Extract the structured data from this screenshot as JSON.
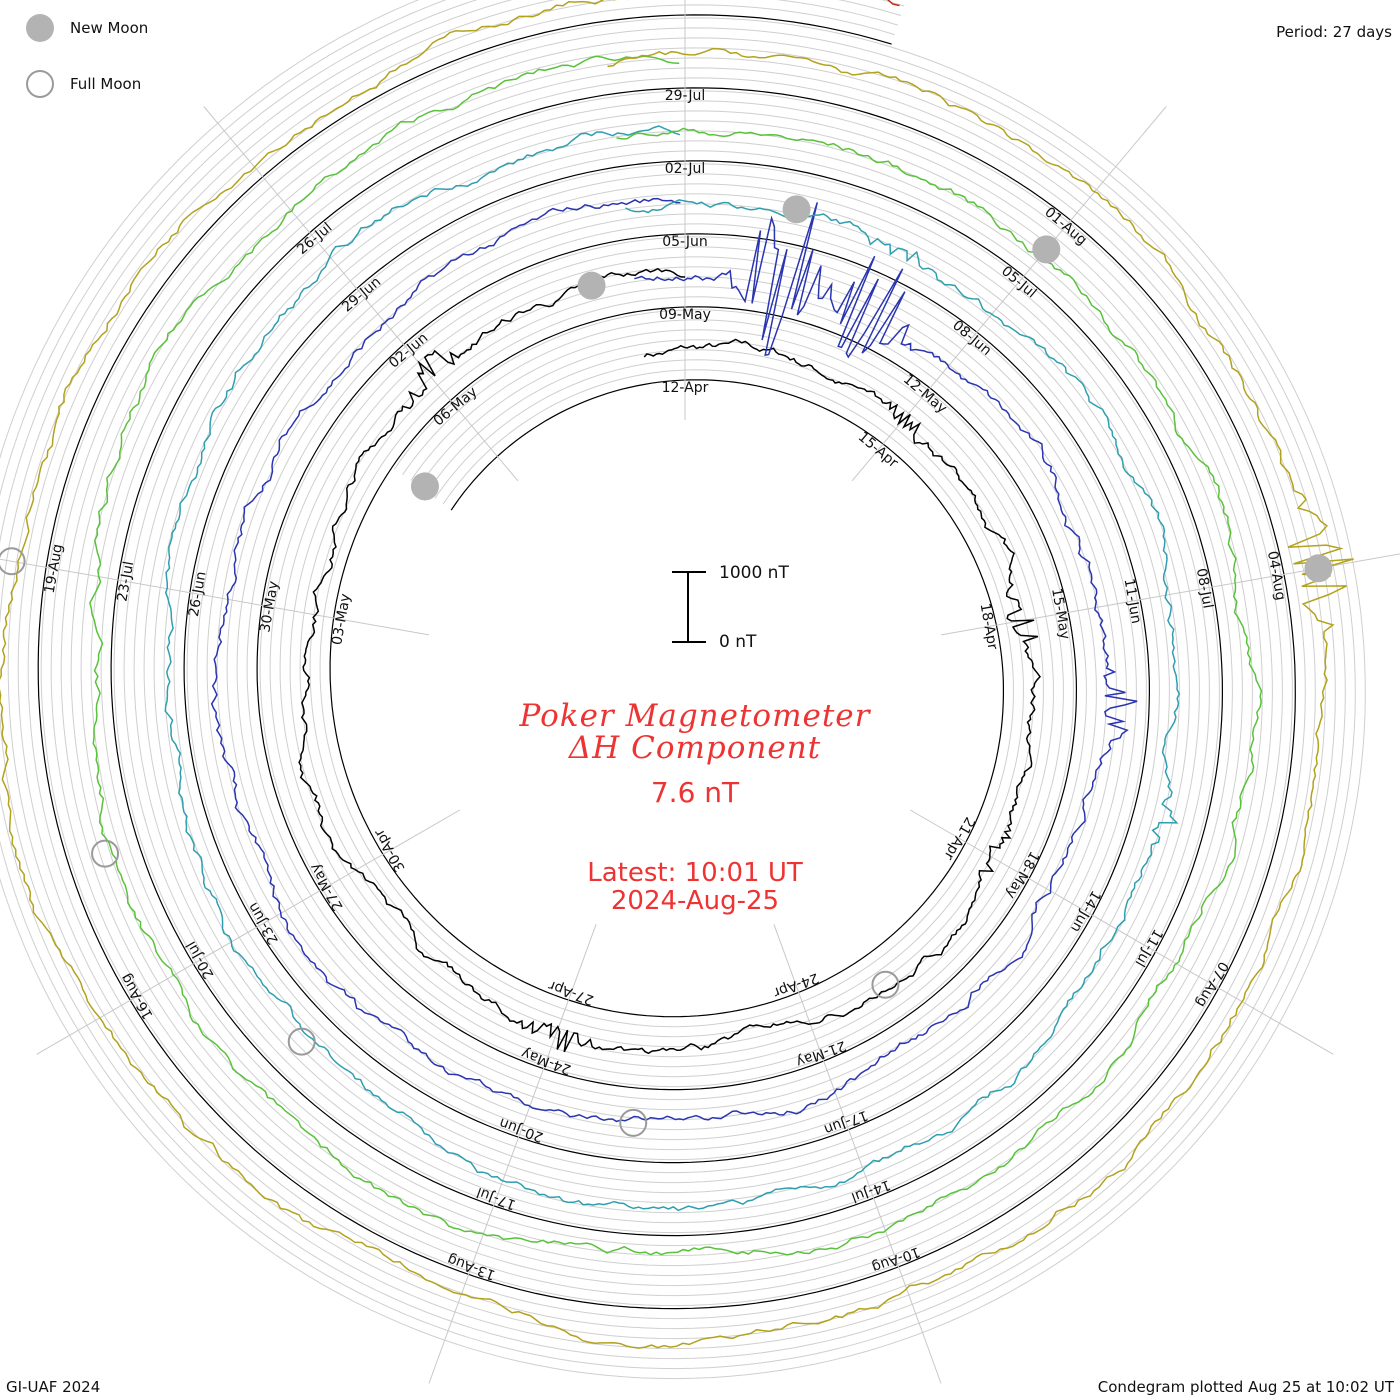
{
  "legend": {
    "new_moon": "New Moon",
    "full_moon": "Full Moon"
  },
  "period": "Period: 27 days",
  "footer_left": "GI-UAF 2024",
  "footer_right": "Condegram plotted Aug 25 at 10:02 UT",
  "scale": {
    "top_label": "1000 nT",
    "bottom_label": "0 nT"
  },
  "center": {
    "title_line1": "Poker Magnetometer",
    "title_line2": "ΔH Component",
    "value": "7.6 nT",
    "latest_line1": "Latest: 10:01 UT",
    "latest_line2": "2024-Aug-25"
  },
  "chart_data": {
    "type": "line",
    "title": "Poker Magnetometer ΔH Component",
    "subtitle": "7.6 nT",
    "period_days": 27,
    "series": [
      {
        "color": "#000000",
        "tick_labels": [
          "12-Apr",
          "15-Apr",
          "18-Apr",
          "21-Apr",
          "24-Apr",
          "27-Apr",
          "30-Apr",
          "03-May",
          "06-May"
        ],
        "disturbances": [
          {
            "date": "06-May",
            "nT": 350
          },
          {
            "date": "15-Apr",
            "nT": 180
          },
          {
            "date": "18-Apr",
            "nT": 320
          },
          {
            "date": "21-Apr",
            "nT": 160
          },
          {
            "date": "27-Apr",
            "nT": 260
          }
        ]
      },
      {
        "color": "#2a35b0",
        "tick_labels": [
          "09-May",
          "12-May",
          "15-May",
          "18-May",
          "21-May",
          "24-May",
          "27-May",
          "30-May",
          "02-Jun"
        ],
        "disturbances": [
          {
            "date": "10-May",
            "nT": 1700
          },
          {
            "date": "11-May",
            "nT": 1200
          },
          {
            "date": "16-May",
            "nT": 300
          },
          {
            "date": "03-May",
            "nT": 500
          }
        ]
      },
      {
        "color": "#2f9fb0",
        "tick_labels": [
          "05-Jun",
          "08-Jun",
          "11-Jun",
          "14-Jun",
          "17-Jun",
          "20-Jun",
          "23-Jun",
          "26-Jun",
          "29-Jun"
        ],
        "disturbances": [
          {
            "date": "07-Jun",
            "nT": 120
          },
          {
            "date": "13-Jun",
            "nT": 150
          }
        ]
      },
      {
        "color": "#59c23b",
        "tick_labels": [
          "02-Jul",
          "05-Jul",
          "08-Jul",
          "11-Jul",
          "14-Jul",
          "17-Jul",
          "20-Jul",
          "23-Jul",
          "26-Jul"
        ],
        "disturbances": [
          {
            "date": "20-Jun",
            "nT": 140
          }
        ]
      },
      {
        "color": "#b3a21c",
        "tick_labels": [
          "29-Jul",
          "01-Aug",
          "04-Aug",
          "07-Aug",
          "10-Aug",
          "13-Aug",
          "16-Aug",
          "19-Aug"
        ],
        "disturbances": [
          {
            "date": "04-Aug",
            "nT": 650
          },
          {
            "date": "28-Jul",
            "nT": 120
          }
        ]
      },
      {
        "color": "#c22a18",
        "tick_labels": [],
        "disturbances": [
          {
            "date": "19-Aug",
            "nT": 220
          },
          {
            "date": "23-Aug",
            "nT": 180
          }
        ]
      }
    ],
    "scale_bar": {
      "min_nT": 0,
      "max_nT": 1000
    },
    "moon_phases": {
      "new_moon": [
        "08-Apr",
        "08-May",
        "06-Jun",
        "05-Jul",
        "04-Aug"
      ],
      "full_moon": [
        "23-Apr",
        "23-May",
        "22-Jun",
        "21-Jul",
        "19-Aug"
      ]
    },
    "latest": "10:01 UT 2024-Aug-25"
  }
}
